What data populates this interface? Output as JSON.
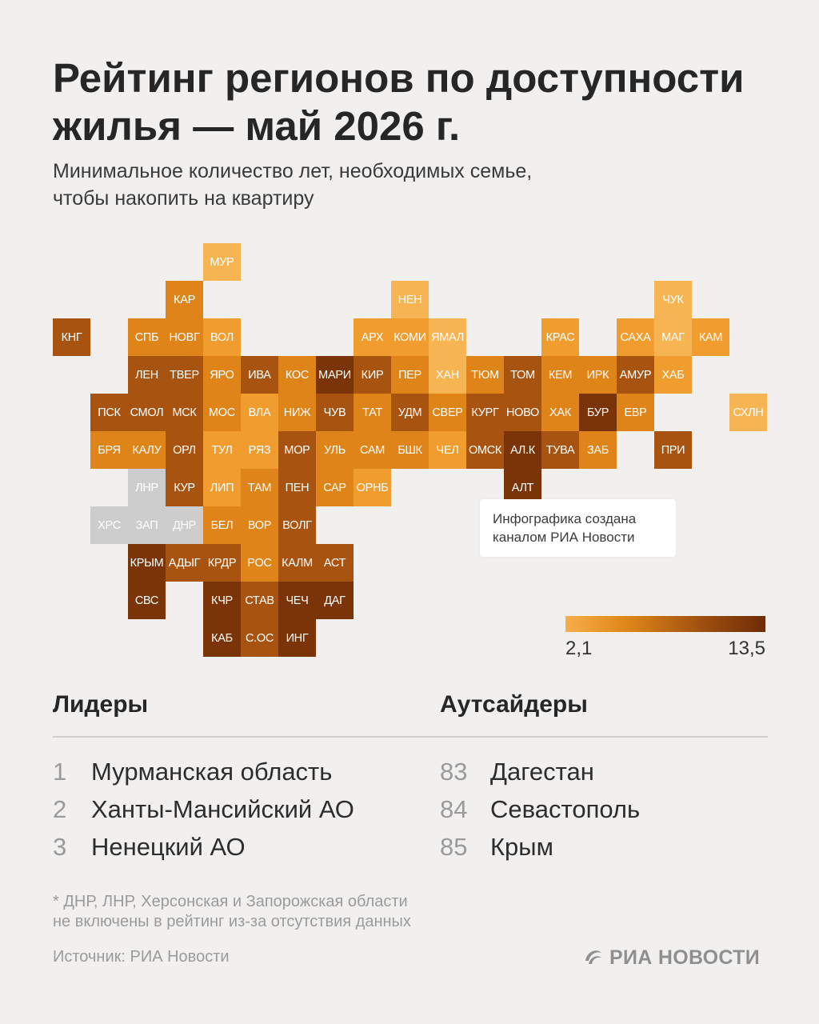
{
  "title_line1": "Рейтинг регионов по доступности",
  "title_line2": "жилья — май 2026 г.",
  "subtitle_line1": "Минимальное количество лет, необходимых семье,",
  "subtitle_line2": "чтобы накопить на квартиру",
  "callout_line1": "Инфографика создана",
  "callout_line2": "каналом РИА Новости",
  "legend": {
    "min": "2,1",
    "max": "13,5",
    "colors": [
      "#f6ae49",
      "#e0871a",
      "#9c4d0f",
      "#6e2c06"
    ]
  },
  "map": {
    "scale_note": "level 1 = lightest (most affordable) ... 5 = darkest; 0 = not rated (grey)",
    "colors": {
      "0": "#cdcdcd",
      "1": "#f6b552",
      "2": "#f09c2e",
      "3": "#df8418",
      "4": "#a85410",
      "5": "#7a3407"
    },
    "regions": [
      {
        "label": "МУР",
        "col": 5,
        "row": 0,
        "level": 1
      },
      {
        "label": "КАР",
        "col": 4,
        "row": 1,
        "level": 3
      },
      {
        "label": "НЕН",
        "col": 10,
        "row": 1,
        "level": 1
      },
      {
        "label": "ЧУК",
        "col": 17,
        "row": 1,
        "level": 1
      },
      {
        "label": "КНГ",
        "col": 1,
        "row": 2,
        "level": 4
      },
      {
        "label": "СПБ",
        "col": 3,
        "row": 2,
        "level": 3
      },
      {
        "label": "НОВГ",
        "col": 4,
        "row": 2,
        "level": 3
      },
      {
        "label": "ВОЛ",
        "col": 5,
        "row": 2,
        "level": 2
      },
      {
        "label": "АРХ",
        "col": 9,
        "row": 2,
        "level": 2
      },
      {
        "label": "КОМИ",
        "col": 10,
        "row": 2,
        "level": 2
      },
      {
        "label": "ЯМАЛ",
        "col": 11,
        "row": 2,
        "level": 1
      },
      {
        "label": "КРАС",
        "col": 14,
        "row": 2,
        "level": 2
      },
      {
        "label": "САХА",
        "col": 16,
        "row": 2,
        "level": 2
      },
      {
        "label": "МАГ",
        "col": 17,
        "row": 2,
        "level": 1
      },
      {
        "label": "КАМ",
        "col": 18,
        "row": 2,
        "level": 2
      },
      {
        "label": "ЛЕН",
        "col": 3,
        "row": 3,
        "level": 4
      },
      {
        "label": "ТВЕР",
        "col": 4,
        "row": 3,
        "level": 4
      },
      {
        "label": "ЯРО",
        "col": 5,
        "row": 3,
        "level": 3
      },
      {
        "label": "ИВА",
        "col": 6,
        "row": 3,
        "level": 4
      },
      {
        "label": "КОС",
        "col": 7,
        "row": 3,
        "level": 3
      },
      {
        "label": "МАРИ",
        "col": 8,
        "row": 3,
        "level": 5
      },
      {
        "label": "КИР",
        "col": 9,
        "row": 3,
        "level": 4
      },
      {
        "label": "ПЕР",
        "col": 10,
        "row": 3,
        "level": 3
      },
      {
        "label": "ХАН",
        "col": 11,
        "row": 3,
        "level": 1
      },
      {
        "label": "ТЮМ",
        "col": 12,
        "row": 3,
        "level": 3
      },
      {
        "label": "ТОМ",
        "col": 13,
        "row": 3,
        "level": 4
      },
      {
        "label": "КЕМ",
        "col": 14,
        "row": 3,
        "level": 3
      },
      {
        "label": "ИРК",
        "col": 15,
        "row": 3,
        "level": 3
      },
      {
        "label": "АМУР",
        "col": 16,
        "row": 3,
        "level": 4
      },
      {
        "label": "ХАБ",
        "col": 17,
        "row": 3,
        "level": 2
      },
      {
        "label": "ПСК",
        "col": 2,
        "row": 4,
        "level": 4
      },
      {
        "label": "СМОЛ",
        "col": 3,
        "row": 4,
        "level": 4
      },
      {
        "label": "МСК",
        "col": 4,
        "row": 4,
        "level": 4
      },
      {
        "label": "МОС",
        "col": 5,
        "row": 4,
        "level": 3
      },
      {
        "label": "ВЛА",
        "col": 6,
        "row": 4,
        "level": 2
      },
      {
        "label": "НИЖ",
        "col": 7,
        "row": 4,
        "level": 3
      },
      {
        "label": "ЧУВ",
        "col": 8,
        "row": 4,
        "level": 4
      },
      {
        "label": "ТАТ",
        "col": 9,
        "row": 4,
        "level": 3
      },
      {
        "label": "УДМ",
        "col": 10,
        "row": 4,
        "level": 4
      },
      {
        "label": "СВЕР",
        "col": 11,
        "row": 4,
        "level": 3
      },
      {
        "label": "КУРГ",
        "col": 12,
        "row": 4,
        "level": 4
      },
      {
        "label": "НОВО",
        "col": 13,
        "row": 4,
        "level": 4
      },
      {
        "label": "ХАК",
        "col": 14,
        "row": 4,
        "level": 3
      },
      {
        "label": "БУР",
        "col": 15,
        "row": 4,
        "level": 5
      },
      {
        "label": "ЕВР",
        "col": 16,
        "row": 4,
        "level": 3
      },
      {
        "label": "СХЛН",
        "col": 19,
        "row": 4,
        "level": 1
      },
      {
        "label": "БРЯ",
        "col": 2,
        "row": 5,
        "level": 3
      },
      {
        "label": "КАЛУ",
        "col": 3,
        "row": 5,
        "level": 3
      },
      {
        "label": "ОРЛ",
        "col": 4,
        "row": 5,
        "level": 4
      },
      {
        "label": "ТУЛ",
        "col": 5,
        "row": 5,
        "level": 2
      },
      {
        "label": "РЯЗ",
        "col": 6,
        "row": 5,
        "level": 2
      },
      {
        "label": "МОР",
        "col": 7,
        "row": 5,
        "level": 4
      },
      {
        "label": "УЛЬ",
        "col": 8,
        "row": 5,
        "level": 3
      },
      {
        "label": "САМ",
        "col": 9,
        "row": 5,
        "level": 3
      },
      {
        "label": "БШК",
        "col": 10,
        "row": 5,
        "level": 3
      },
      {
        "label": "ЧЕЛ",
        "col": 11,
        "row": 5,
        "level": 2
      },
      {
        "label": "ОМСК",
        "col": 12,
        "row": 5,
        "level": 4
      },
      {
        "label": "АЛ.К",
        "col": 13,
        "row": 5,
        "level": 5
      },
      {
        "label": "ТУВА",
        "col": 14,
        "row": 5,
        "level": 4
      },
      {
        "label": "ЗАБ",
        "col": 15,
        "row": 5,
        "level": 3
      },
      {
        "label": "ПРИ",
        "col": 17,
        "row": 5,
        "level": 4
      },
      {
        "label": "ЛНР",
        "col": 3,
        "row": 6,
        "level": 0
      },
      {
        "label": "КУР",
        "col": 4,
        "row": 6,
        "level": 4
      },
      {
        "label": "ЛИП",
        "col": 5,
        "row": 6,
        "level": 2
      },
      {
        "label": "ТАМ",
        "col": 6,
        "row": 6,
        "level": 3
      },
      {
        "label": "ПЕН",
        "col": 7,
        "row": 6,
        "level": 4
      },
      {
        "label": "САР",
        "col": 8,
        "row": 6,
        "level": 3
      },
      {
        "label": "ОРНБ",
        "col": 9,
        "row": 6,
        "level": 2
      },
      {
        "label": "АЛТ",
        "col": 13,
        "row": 6,
        "level": 5
      },
      {
        "label": "ХРС",
        "col": 2,
        "row": 7,
        "level": 0
      },
      {
        "label": "ЗАП",
        "col": 3,
        "row": 7,
        "level": 0
      },
      {
        "label": "ДНР",
        "col": 4,
        "row": 7,
        "level": 0
      },
      {
        "label": "БЕЛ",
        "col": 5,
        "row": 7,
        "level": 3
      },
      {
        "label": "ВОР",
        "col": 6,
        "row": 7,
        "level": 3
      },
      {
        "label": "ВОЛГ",
        "col": 7,
        "row": 7,
        "level": 4
      },
      {
        "label": "КРЫМ",
        "col": 3,
        "row": 8,
        "level": 5
      },
      {
        "label": "АДЫГ",
        "col": 4,
        "row": 8,
        "level": 4
      },
      {
        "label": "КРДР",
        "col": 5,
        "row": 8,
        "level": 4
      },
      {
        "label": "РОС",
        "col": 6,
        "row": 8,
        "level": 3
      },
      {
        "label": "КАЛМ",
        "col": 7,
        "row": 8,
        "level": 4
      },
      {
        "label": "АСТ",
        "col": 8,
        "row": 8,
        "level": 4
      },
      {
        "label": "СВС",
        "col": 3,
        "row": 9,
        "level": 5
      },
      {
        "label": "КЧР",
        "col": 5,
        "row": 9,
        "level": 5
      },
      {
        "label": "СТАВ",
        "col": 6,
        "row": 9,
        "level": 4
      },
      {
        "label": "ЧЕЧ",
        "col": 7,
        "row": 9,
        "level": 5
      },
      {
        "label": "ДАГ",
        "col": 8,
        "row": 9,
        "level": 5
      },
      {
        "label": "КАБ",
        "col": 5,
        "row": 10,
        "level": 5
      },
      {
        "label": "С.ОС",
        "col": 6,
        "row": 10,
        "level": 4
      },
      {
        "label": "ИНГ",
        "col": 7,
        "row": 10,
        "level": 5
      }
    ]
  },
  "leaders": {
    "heading": "Лидеры",
    "items": [
      {
        "rank": "1",
        "name": "Мурманская область"
      },
      {
        "rank": "2",
        "name": "Ханты-Мансийский АО"
      },
      {
        "rank": "3",
        "name": "Ненецкий АО"
      }
    ]
  },
  "outsiders": {
    "heading": "Аутсайдеры",
    "items": [
      {
        "rank": "83",
        "name": "Дагестан"
      },
      {
        "rank": "84",
        "name": "Севастополь"
      },
      {
        "rank": "85",
        "name": "Крым"
      }
    ]
  },
  "footnote_line1": "* ДНР, ЛНР, Херсонская и Запорожская области",
  "footnote_line2": "не включены в рейтинг из-за отсутствия данных",
  "source": "Источник: РИА Новости",
  "brand": "РИА НОВОСТИ",
  "brand_icon": "ria-swirl-icon"
}
